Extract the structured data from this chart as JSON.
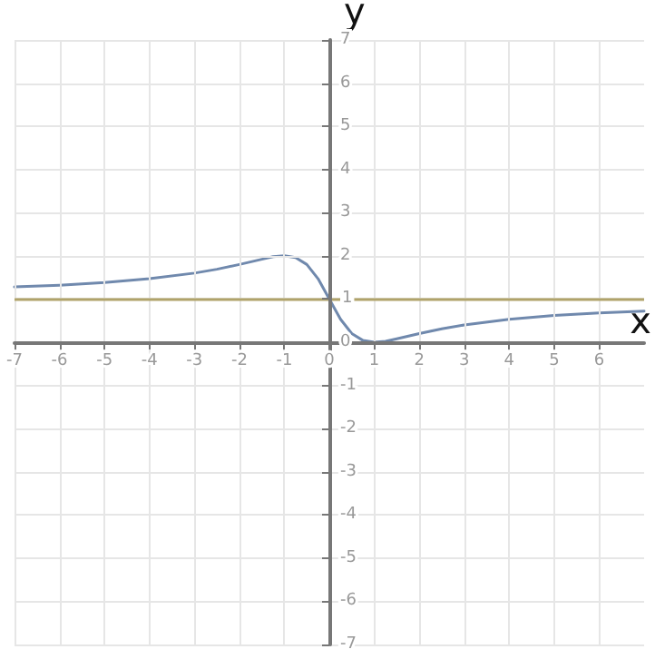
{
  "chart_data": {
    "type": "line",
    "xlabel": "x",
    "ylabel": "y",
    "series": [
      {
        "color": "#7089ad",
        "x": [
          -7,
          -6,
          -5,
          -4,
          -3,
          -2.5,
          -2,
          -1.5,
          -1.25,
          -1,
          -0.75,
          -0.5,
          -0.25,
          0,
          0.25,
          0.5,
          0.75,
          1,
          1.25,
          1.5,
          2,
          2.5,
          3,
          4,
          5,
          6,
          7
        ],
        "values": [
          1.28,
          1.32,
          1.38,
          1.47,
          1.6,
          1.69,
          1.8,
          1.92,
          1.98,
          2,
          1.96,
          1.8,
          1.47,
          1,
          0.53,
          0.2,
          0.04,
          0,
          0.02,
          0.08,
          0.2,
          0.31,
          0.4,
          0.53,
          0.62,
          0.68,
          0.72
        ]
      }
    ],
    "ref_lines": [
      {
        "axis": "y",
        "value": 1,
        "color": "#b0a36a"
      }
    ],
    "xlim": [
      -7,
      7
    ],
    "ylim": [
      -7,
      7
    ],
    "xticks": [
      -7,
      -6,
      -5,
      -4,
      -3,
      -2,
      -1,
      0,
      1,
      2,
      3,
      4,
      5,
      6
    ],
    "yticks": [
      -7,
      -6,
      -5,
      -4,
      -3,
      -2,
      -1,
      0,
      1,
      2,
      3,
      4,
      5,
      6,
      7
    ],
    "grid": true,
    "marker": "none",
    "line_style": "solid"
  }
}
